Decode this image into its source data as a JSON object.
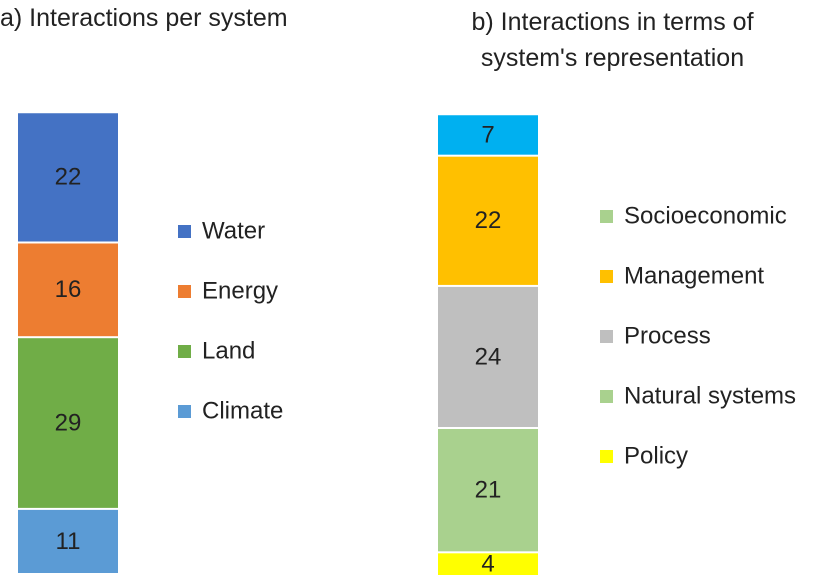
{
  "chart_data": [
    {
      "type": "bar",
      "stacked": true,
      "title": "a) Interactions per system",
      "series": [
        {
          "name": "Water",
          "color": "#4472c4",
          "values": [
            22
          ]
        },
        {
          "name": "Energy",
          "color": "#ed7d31",
          "values": [
            16
          ]
        },
        {
          "name": "Land",
          "color": "#70ad47",
          "values": [
            29
          ]
        },
        {
          "name": "Climate",
          "color": "#5b9bd5",
          "values": [
            11
          ]
        }
      ]
    },
    {
      "type": "bar",
      "stacked": true,
      "title": "b) Interactions in terms of system's representation",
      "series": [
        {
          "name": "Socioeconomic",
          "color": "#00b0f0",
          "legend_color": "#a9d18e",
          "values": [
            7
          ]
        },
        {
          "name": "Management",
          "color": "#ffc000",
          "values": [
            22
          ]
        },
        {
          "name": "Process",
          "color": "#bfbfbf",
          "values": [
            24
          ]
        },
        {
          "name": "Natural systems",
          "color": "#a9d18e",
          "values": [
            21
          ]
        },
        {
          "name": "Policy",
          "color": "#ffff00",
          "values": [
            4
          ]
        }
      ]
    }
  ]
}
